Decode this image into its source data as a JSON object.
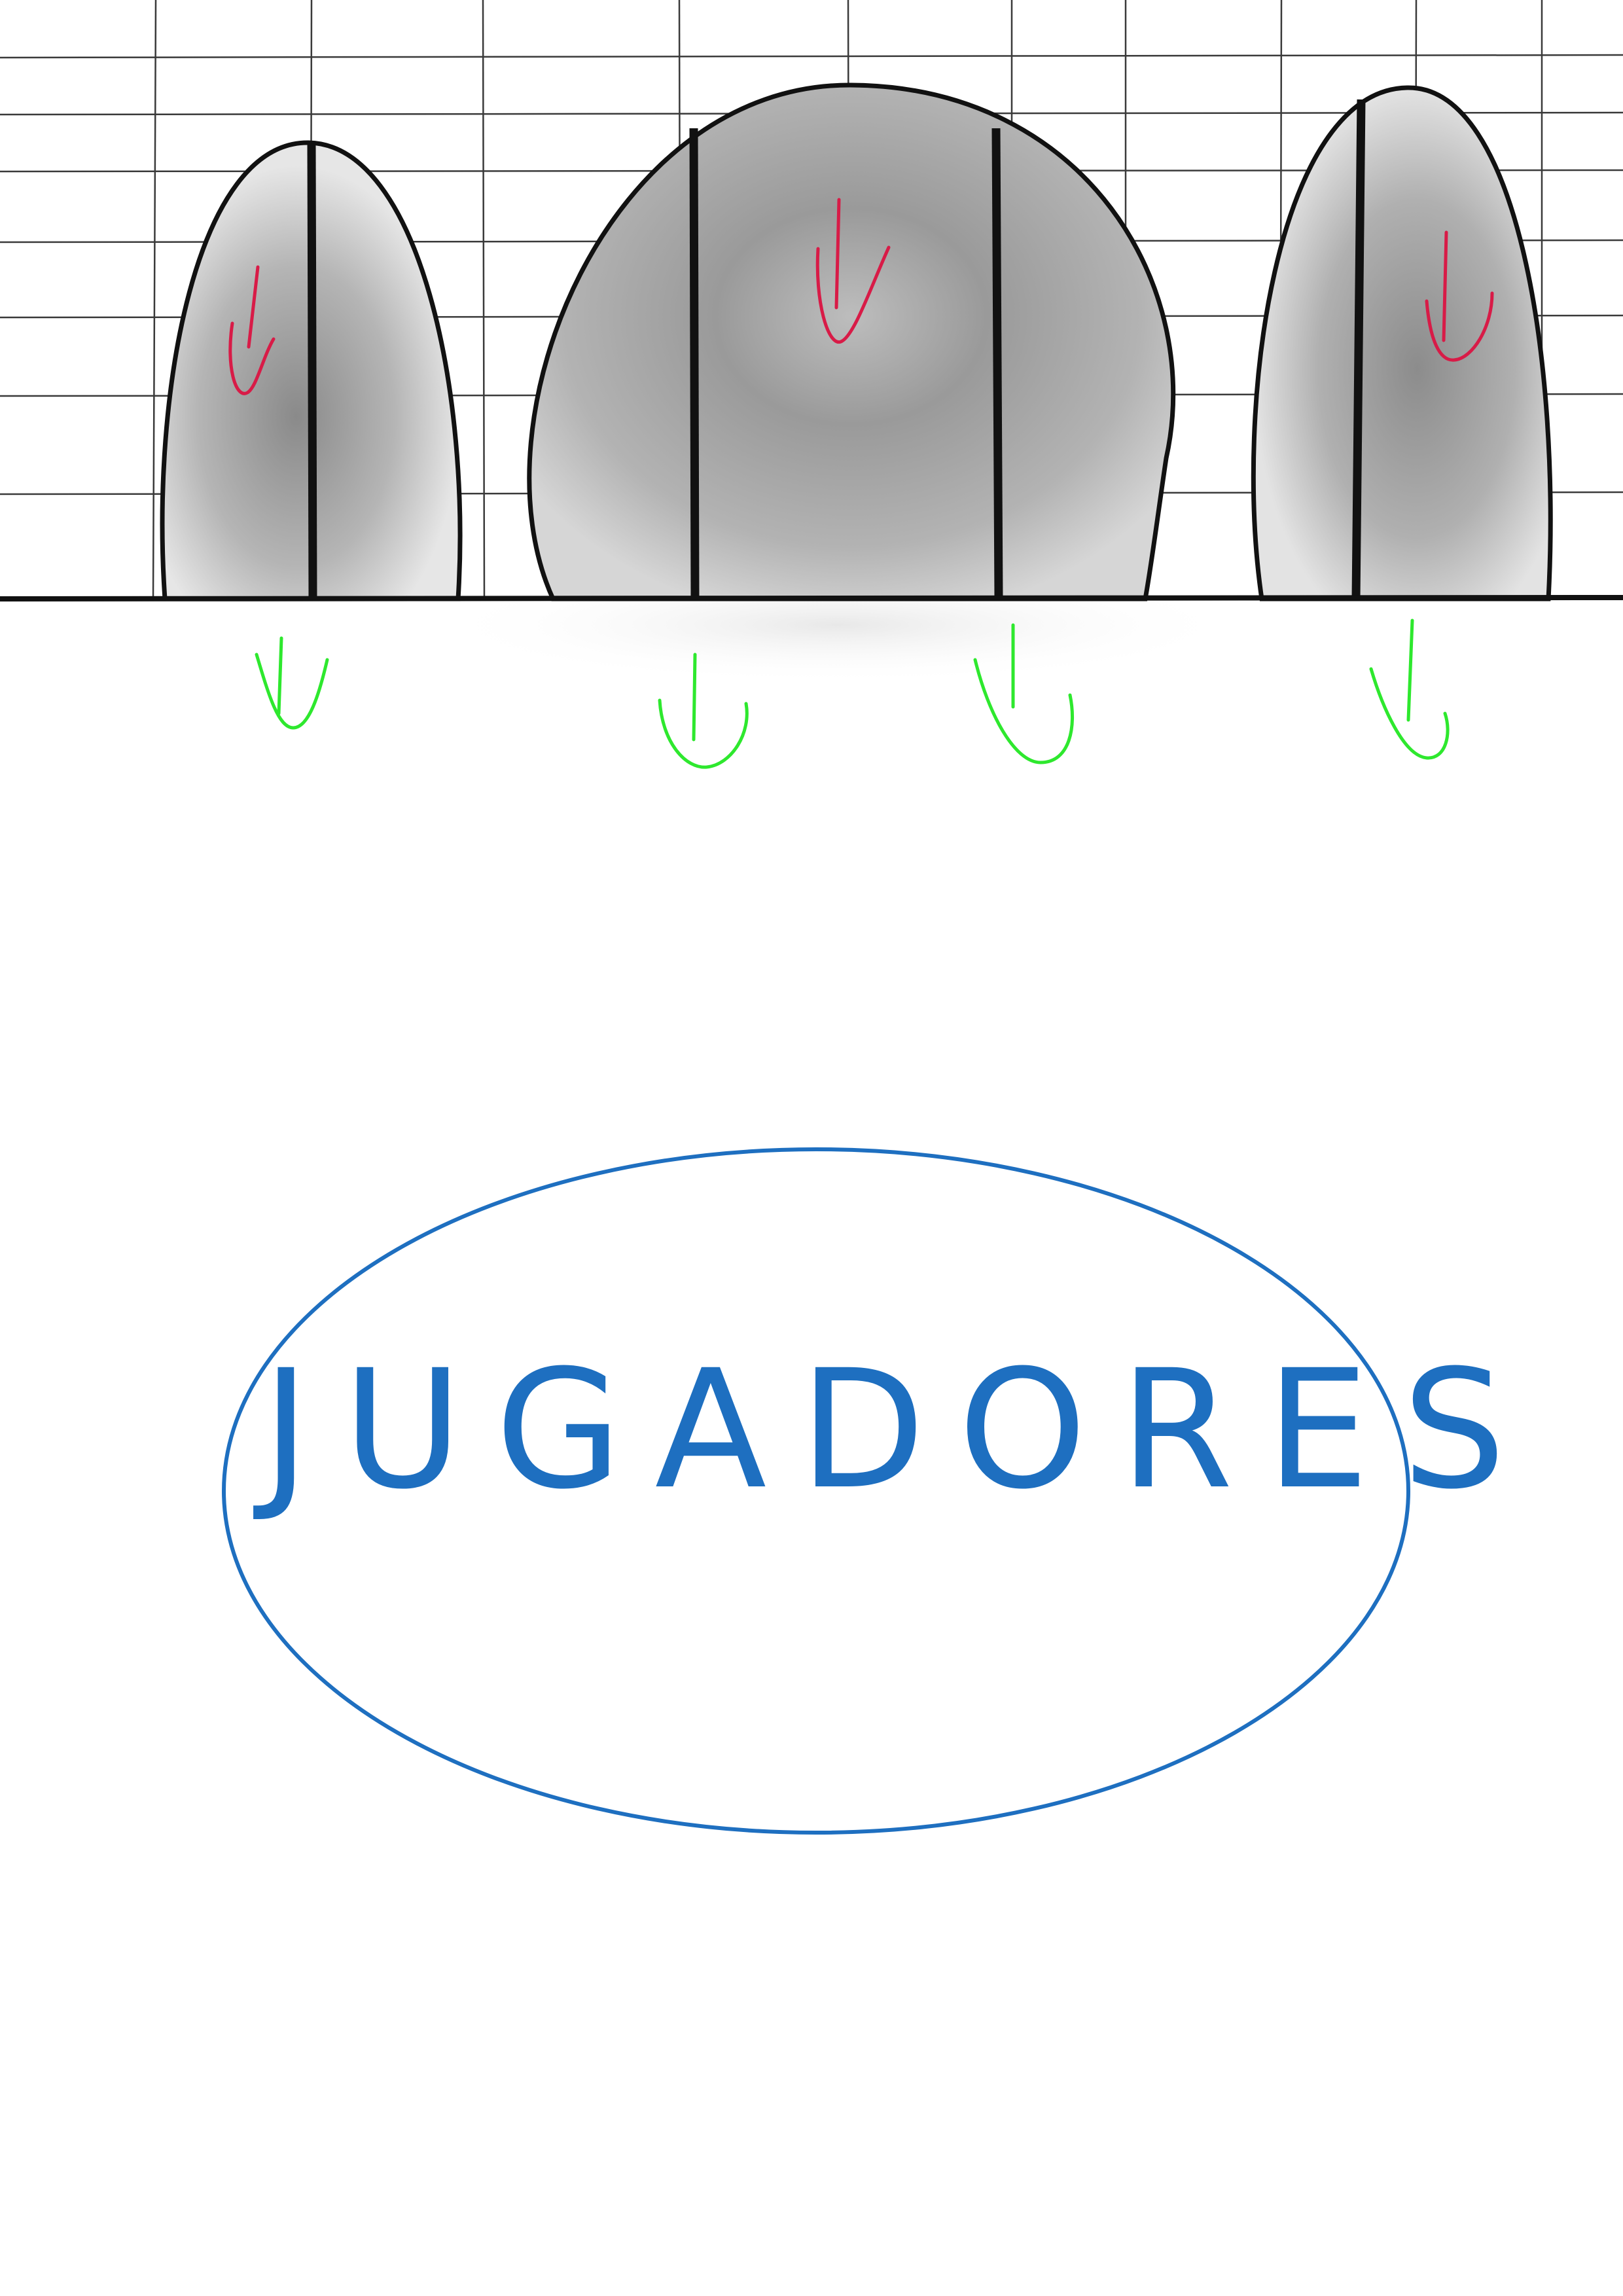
{
  "colors": {
    "background": "#ffffff",
    "grid_line": "#3a3a3a",
    "outline": "#111111",
    "fill_dark": "#8d8d8d",
    "fill_light": "#d9d9d9",
    "down_arrow_inside": "#d81b47",
    "down_arrow_below": "#2ee82e",
    "players_oval": "#1e6fc0",
    "players_text": "#1e6fc0"
  },
  "icons": {
    "inside_arrow": "down-arrow-icon",
    "below_arrow": "down-arrow-icon"
  },
  "players": {
    "label": "JUGADORES"
  }
}
